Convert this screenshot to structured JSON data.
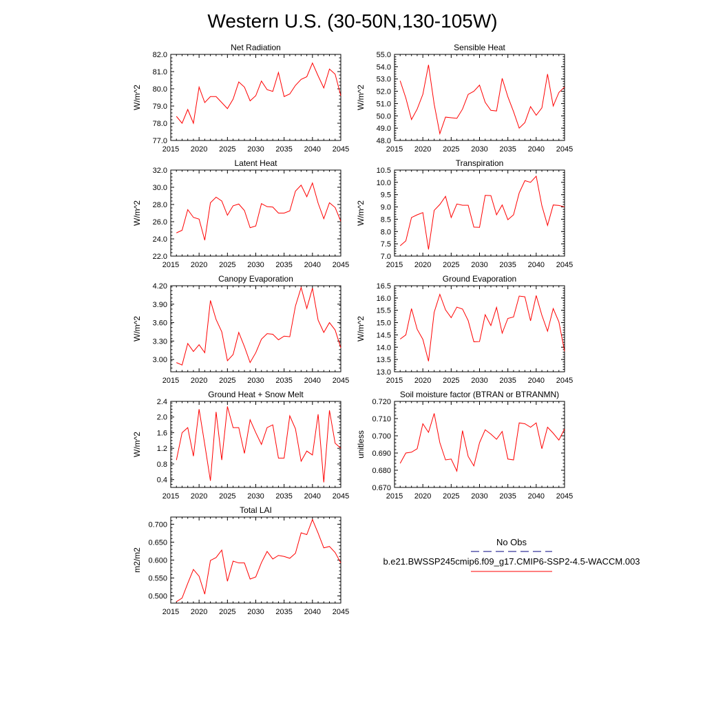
{
  "title": "Western U.S. (30-50N,130-105W)",
  "legend": {
    "obs_label": "No Obs",
    "obs_color": "#000080",
    "model_label": "b.e21.BWSSP245cmip6.f09_g17.CMIP6-SSP2-4.5-WACCM.003",
    "model_color": "#ff0000"
  },
  "chart_data": [
    {
      "type": "line",
      "title": "Net Radiation",
      "ylabel": "W/m^2",
      "xlim": [
        2015,
        2045
      ],
      "ylim": [
        77.0,
        82.0
      ],
      "xticks": [
        "2015",
        "2020",
        "2025",
        "2030",
        "2035",
        "2040",
        "2045"
      ],
      "yticks": [
        "77.0",
        "78.0",
        "79.0",
        "80.0",
        "81.0",
        "82.0"
      ],
      "x": [
        2016,
        2017,
        2018,
        2019,
        2020,
        2021,
        2022,
        2023,
        2024,
        2025,
        2026,
        2027,
        2028,
        2029,
        2030,
        2031,
        2032,
        2033,
        2034,
        2035,
        2036,
        2037,
        2038,
        2039,
        2040,
        2041,
        2042,
        2043,
        2044,
        2045
      ],
      "series": [
        {
          "values": [
            78.4,
            78.0,
            78.8,
            78.0,
            80.1,
            79.2,
            79.55,
            79.55,
            79.2,
            78.85,
            79.4,
            80.4,
            80.1,
            79.3,
            79.6,
            80.45,
            79.95,
            79.85,
            80.95,
            79.55,
            79.7,
            80.2,
            80.55,
            80.7,
            81.5,
            80.75,
            80.05,
            81.15,
            80.85,
            79.6
          ]
        }
      ]
    },
    {
      "type": "line",
      "title": "Sensible Heat",
      "ylabel": "W/m^2",
      "xlim": [
        2015,
        2045
      ],
      "ylim": [
        48.0,
        55.0
      ],
      "xticks": [
        "2015",
        "2020",
        "2025",
        "2030",
        "2035",
        "2040",
        "2045"
      ],
      "yticks": [
        "48.0",
        "49.0",
        "50.0",
        "51.0",
        "52.0",
        "53.0",
        "54.0",
        "55.0"
      ],
      "x": [
        2016,
        2017,
        2018,
        2019,
        2020,
        2021,
        2022,
        2023,
        2024,
        2025,
        2026,
        2027,
        2028,
        2029,
        2030,
        2031,
        2032,
        2033,
        2034,
        2035,
        2036,
        2037,
        2038,
        2039,
        2040,
        2041,
        2042,
        2043,
        2044,
        2045
      ],
      "series": [
        {
          "values": [
            52.85,
            51.45,
            49.7,
            50.55,
            51.75,
            54.15,
            50.95,
            48.55,
            49.9,
            49.85,
            49.8,
            50.55,
            51.75,
            52.0,
            52.5,
            51.1,
            50.45,
            50.4,
            53.05,
            51.55,
            50.35,
            49.0,
            49.45,
            50.75,
            50.05,
            50.65,
            53.4,
            50.8,
            51.9,
            52.35
          ]
        }
      ]
    },
    {
      "type": "line",
      "title": "Latent Heat",
      "ylabel": "W/m^2",
      "xlim": [
        2015,
        2045
      ],
      "ylim": [
        22.0,
        32.0
      ],
      "xticks": [
        "2015",
        "2020",
        "2025",
        "2030",
        "2035",
        "2040",
        "2045"
      ],
      "yticks": [
        "22.0",
        "24.0",
        "26.0",
        "28.0",
        "30.0",
        "32.0"
      ],
      "x": [
        2016,
        2017,
        2018,
        2019,
        2020,
        2021,
        2022,
        2023,
        2024,
        2025,
        2026,
        2027,
        2028,
        2029,
        2030,
        2031,
        2032,
        2033,
        2034,
        2035,
        2036,
        2037,
        2038,
        2039,
        2040,
        2041,
        2042,
        2043,
        2044,
        2045
      ],
      "series": [
        {
          "values": [
            24.7,
            25.0,
            27.4,
            26.5,
            26.3,
            23.85,
            28.2,
            28.85,
            28.4,
            26.75,
            27.85,
            28.05,
            27.3,
            25.3,
            25.5,
            28.1,
            27.75,
            27.7,
            27.0,
            27.0,
            27.25,
            29.55,
            30.25,
            28.9,
            30.5,
            28.15,
            26.35,
            28.2,
            27.65,
            26.05
          ]
        }
      ]
    },
    {
      "type": "line",
      "title": "Transpiration",
      "ylabel": "W/m^2",
      "xlim": [
        2015,
        2045
      ],
      "ylim": [
        7.0,
        10.5
      ],
      "xticks": [
        "2015",
        "2020",
        "2025",
        "2030",
        "2035",
        "2040",
        "2045"
      ],
      "yticks": [
        "7.0",
        "7.5",
        "8.0",
        "8.5",
        "9.0",
        "9.5",
        "10.0",
        "10.5"
      ],
      "x": [
        2016,
        2017,
        2018,
        2019,
        2020,
        2021,
        2022,
        2023,
        2024,
        2025,
        2026,
        2027,
        2028,
        2029,
        2030,
        2031,
        2032,
        2033,
        2034,
        2035,
        2036,
        2037,
        2038,
        2039,
        2040,
        2041,
        2042,
        2043,
        2044,
        2045
      ],
      "series": [
        {
          "values": [
            7.42,
            7.62,
            8.57,
            8.68,
            8.77,
            7.27,
            8.86,
            9.1,
            9.43,
            8.57,
            9.12,
            9.07,
            9.07,
            8.18,
            8.17,
            9.47,
            9.46,
            8.68,
            9.08,
            8.48,
            8.68,
            9.57,
            10.07,
            10.0,
            10.25,
            9.05,
            8.25,
            9.08,
            9.06,
            9.0
          ]
        }
      ]
    },
    {
      "type": "line",
      "title": "Canopy Evaporation",
      "ylabel": "W/m^2",
      "xlim": [
        2015,
        2045
      ],
      "ylim": [
        2.8,
        4.2
      ],
      "xticks": [
        "2015",
        "2020",
        "2025",
        "2030",
        "2035",
        "2040",
        "2045"
      ],
      "yticks": [
        "3.00",
        "3.30",
        "3.60",
        "3.90",
        "4.20"
      ],
      "x": [
        2016,
        2017,
        2018,
        2019,
        2020,
        2021,
        2022,
        2023,
        2024,
        2025,
        2026,
        2027,
        2028,
        2029,
        2030,
        2031,
        2032,
        2033,
        2034,
        2035,
        2036,
        2037,
        2038,
        2039,
        2040,
        2041,
        2042,
        2043,
        2044,
        2045
      ],
      "series": [
        {
          "values": [
            2.95,
            2.91,
            3.26,
            3.13,
            3.24,
            3.11,
            3.96,
            3.65,
            3.45,
            2.98,
            3.08,
            3.44,
            3.21,
            2.95,
            3.11,
            3.33,
            3.42,
            3.41,
            3.32,
            3.38,
            3.37,
            3.87,
            4.17,
            3.83,
            4.16,
            3.64,
            3.44,
            3.6,
            3.48,
            3.19
          ]
        }
      ]
    },
    {
      "type": "line",
      "title": "Ground Evaporation",
      "ylabel": "W/m^2",
      "xlim": [
        2015,
        2045
      ],
      "ylim": [
        13.0,
        16.5
      ],
      "xticks": [
        "2015",
        "2020",
        "2025",
        "2030",
        "2035",
        "2040",
        "2045"
      ],
      "yticks": [
        "13.0",
        "13.5",
        "14.0",
        "14.5",
        "15.0",
        "15.5",
        "16.0",
        "16.5"
      ],
      "x": [
        2016,
        2017,
        2018,
        2019,
        2020,
        2021,
        2022,
        2023,
        2024,
        2025,
        2026,
        2027,
        2028,
        2029,
        2030,
        2031,
        2032,
        2033,
        2034,
        2035,
        2036,
        2037,
        2038,
        2039,
        2040,
        2041,
        2042,
        2043,
        2044,
        2045
      ],
      "series": [
        {
          "values": [
            14.33,
            14.5,
            15.57,
            14.73,
            14.32,
            13.43,
            15.42,
            16.15,
            15.52,
            15.2,
            15.63,
            15.55,
            15.08,
            14.22,
            14.23,
            15.32,
            14.88,
            15.62,
            14.57,
            15.17,
            15.23,
            16.08,
            16.05,
            15.07,
            16.1,
            15.3,
            14.65,
            15.57,
            15.03,
            13.83
          ]
        }
      ]
    },
    {
      "type": "line",
      "title": "Ground Heat + Snow Melt",
      "ylabel": "W/m^2",
      "xlim": [
        2015,
        2045
      ],
      "ylim": [
        0.2,
        2.4
      ],
      "xticks": [
        "2015",
        "2020",
        "2025",
        "2030",
        "2035",
        "2040",
        "2045"
      ],
      "yticks": [
        "0.4",
        "0.8",
        "1.2",
        "1.6",
        "2.0",
        "2.4"
      ],
      "x": [
        2016,
        2017,
        2018,
        2019,
        2020,
        2021,
        2022,
        2023,
        2024,
        2025,
        2026,
        2027,
        2028,
        2029,
        2030,
        2031,
        2032,
        2033,
        2034,
        2035,
        2036,
        2037,
        2038,
        2039,
        2040,
        2041,
        2042,
        2043,
        2044,
        2045
      ],
      "series": [
        {
          "values": [
            0.9,
            1.6,
            1.73,
            1.0,
            2.2,
            1.3,
            0.37,
            2.13,
            0.9,
            2.27,
            1.73,
            1.73,
            1.07,
            1.93,
            1.6,
            1.3,
            1.73,
            1.8,
            0.95,
            0.95,
            2.03,
            1.7,
            0.87,
            1.13,
            1.03,
            2.07,
            0.33,
            2.17,
            1.33,
            1.2
          ]
        }
      ]
    },
    {
      "type": "line",
      "title": "Soil moisture factor (BTRAN or BTRANMN)",
      "ylabel": "unitless",
      "xlim": [
        2015,
        2045
      ],
      "ylim": [
        0.67,
        0.72
      ],
      "xticks": [
        "2015",
        "2020",
        "2025",
        "2030",
        "2035",
        "2040",
        "2045"
      ],
      "yticks": [
        "0.670",
        "0.680",
        "0.690",
        "0.700",
        "0.710",
        "0.720"
      ],
      "x": [
        2016,
        2017,
        2018,
        2019,
        2020,
        2021,
        2022,
        2023,
        2024,
        2025,
        2026,
        2027,
        2028,
        2029,
        2030,
        2031,
        2032,
        2033,
        2034,
        2035,
        2036,
        2037,
        2038,
        2039,
        2040,
        2041,
        2042,
        2043,
        2044,
        2045
      ],
      "series": [
        {
          "values": [
            0.684,
            0.69,
            0.6905,
            0.6925,
            0.707,
            0.702,
            0.713,
            0.696,
            0.686,
            0.6865,
            0.6795,
            0.703,
            0.688,
            0.6825,
            0.696,
            0.7035,
            0.701,
            0.698,
            0.7025,
            0.6865,
            0.686,
            0.7075,
            0.707,
            0.705,
            0.7075,
            0.6925,
            0.705,
            0.7015,
            0.6975,
            0.704
          ]
        }
      ]
    },
    {
      "type": "line",
      "title": "Total LAI",
      "ylabel": "m2/m2",
      "xlim": [
        2015,
        2045
      ],
      "ylim": [
        0.48,
        0.72
      ],
      "xticks": [
        "2015",
        "2020",
        "2025",
        "2030",
        "2035",
        "2040",
        "2045"
      ],
      "yticks": [
        "0.500",
        "0.550",
        "0.600",
        "0.650",
        "0.700"
      ],
      "x": [
        2016,
        2017,
        2018,
        2019,
        2020,
        2021,
        2022,
        2023,
        2024,
        2025,
        2026,
        2027,
        2028,
        2029,
        2030,
        2031,
        2032,
        2033,
        2034,
        2035,
        2036,
        2037,
        2038,
        2039,
        2040,
        2041,
        2042,
        2043,
        2044,
        2045
      ],
      "series": [
        {
          "values": [
            0.484,
            0.494,
            0.535,
            0.574,
            0.555,
            0.505,
            0.599,
            0.607,
            0.628,
            0.541,
            0.597,
            0.592,
            0.592,
            0.547,
            0.553,
            0.593,
            0.624,
            0.603,
            0.613,
            0.61,
            0.605,
            0.619,
            0.676,
            0.671,
            0.713,
            0.675,
            0.634,
            0.638,
            0.621,
            0.592
          ]
        }
      ]
    }
  ]
}
